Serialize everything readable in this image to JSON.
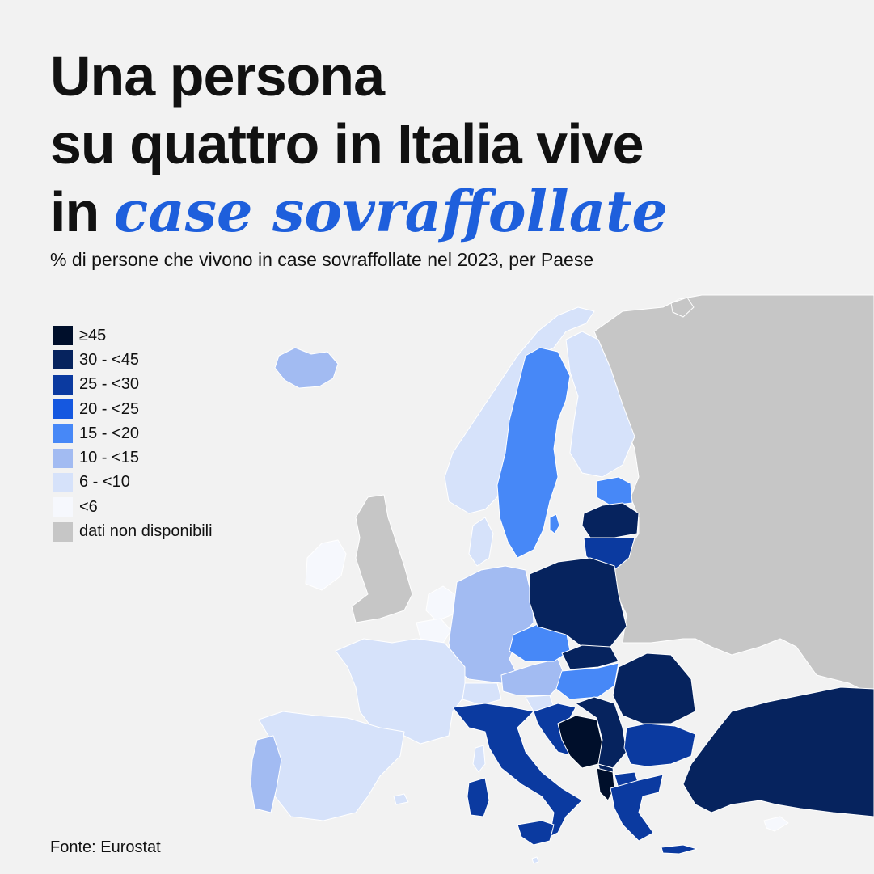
{
  "title": {
    "line1": "Una persona",
    "line2": "su quattro in Italia vive",
    "line3_prefix": "in ",
    "line3_accent": "case sovraffollate"
  },
  "subtitle": "% di persone che vivono in case sovraffollate nel 2023, per Paese",
  "legend": {
    "items": [
      {
        "label": "≥45",
        "color": "#000f2b"
      },
      {
        "label": "30 - <45",
        "color": "#06235e"
      },
      {
        "label": "25 - <30",
        "color": "#0b3aa0"
      },
      {
        "label": "20 - <25",
        "color": "#1558e0"
      },
      {
        "label": "15 - <20",
        "color": "#4788f7"
      },
      {
        "label": "10 - <15",
        "color": "#a2bbf2"
      },
      {
        "label": "6 - <10",
        "color": "#d6e2fa"
      },
      {
        "label": "<6",
        "color": "#f6f8fd"
      },
      {
        "label": "dati non disponibili",
        "color": "#c6c6c6"
      }
    ]
  },
  "source": "Fonte: Eurostat",
  "colors": {
    "accent": "#1e5fdc",
    "background": "#f2f2f2",
    "no_data": "#c6c6c6"
  }
}
